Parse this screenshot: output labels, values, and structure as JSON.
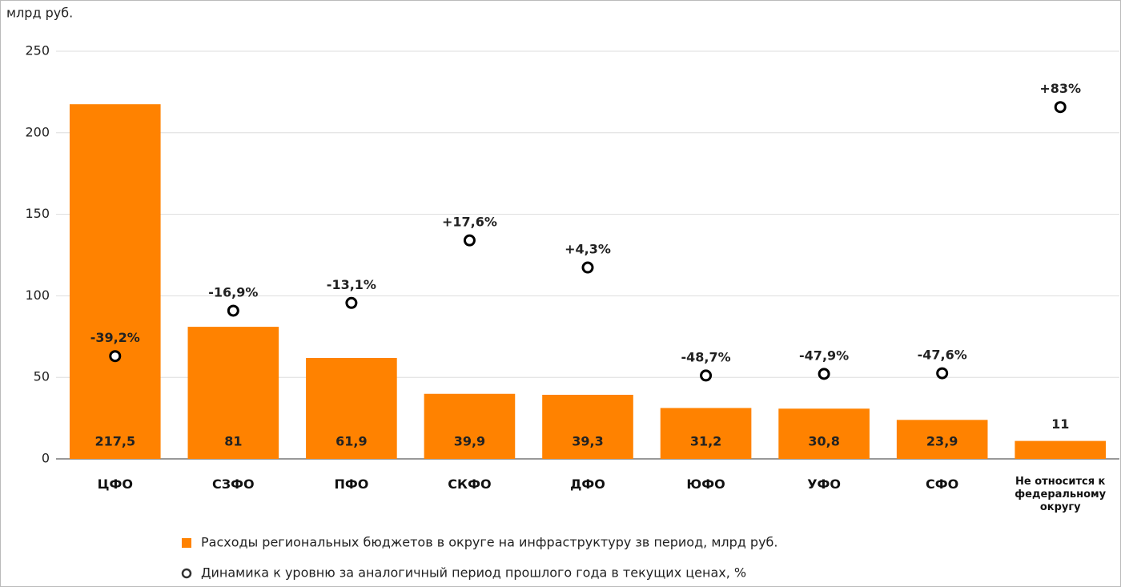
{
  "chart_data": {
    "type": "bar",
    "y_axis_label": "млрд руб.",
    "categories": [
      "ЦФО",
      "СЗФО",
      "ПФО",
      "СКФО",
      "ДФО",
      "ЮФО",
      "УФО",
      "СФО",
      "Не относится к федеральному округу"
    ],
    "series": [
      {
        "name": "Расходы региональных бюджетов в округе на инфраструктуру зв период, млрд руб.",
        "color": "#ff8200",
        "values": [
          217.5,
          81,
          61.9,
          39.9,
          39.3,
          31.2,
          30.8,
          23.9,
          11
        ],
        "value_labels": [
          "217,5",
          "81",
          "61,9",
          "39,9",
          "39,3",
          "31,2",
          "30,8",
          "23,9",
          "11"
        ]
      },
      {
        "name": "Динамика к уровню за аналогичный период прошлого года в текущих ценах, %",
        "color": "#000000",
        "type": "scatter",
        "axis": "y2",
        "values": [
          -39.2,
          -16.9,
          -13.1,
          17.6,
          4.3,
          -48.7,
          -47.9,
          -47.6,
          83
        ],
        "value_labels": [
          "-39,2%",
          "-16,9%",
          "-13,1%",
          "+17,6%",
          "+4,3%",
          "-48,7%",
          "-47,9%",
          "-47,6%",
          "+83%"
        ]
      }
    ],
    "ylim": [
      0,
      250
    ],
    "yticks": [
      0,
      50,
      100,
      150,
      200,
      250
    ],
    "y2lim": [
      -89.6,
      110.4
    ],
    "grid": true
  }
}
